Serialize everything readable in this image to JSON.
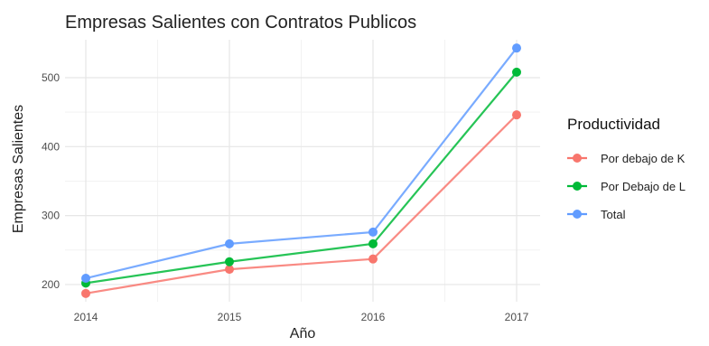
{
  "chart_data": {
    "type": "line",
    "title": "Empresas Salientes con Contratos Publicos",
    "xlabel": "Año",
    "ylabel": "Empresas Salientes",
    "x": [
      "2014",
      "2015",
      "2016",
      "2017"
    ],
    "yticks": [
      "200",
      "300",
      "400",
      "500"
    ],
    "ylim": [
      175,
      555
    ],
    "grid": true,
    "legend": {
      "title": "Productividad",
      "placement": "right"
    },
    "series": [
      {
        "name": "Por debajo de K",
        "color": "#F8766D",
        "values": [
          187,
          222,
          237,
          446
        ]
      },
      {
        "name": "Por Debajo de L",
        "color": "#00BA38",
        "values": [
          202,
          233,
          259,
          508
        ]
      },
      {
        "name": "Total",
        "color": "#619CFF",
        "values": [
          209,
          259,
          276,
          543
        ]
      }
    ]
  }
}
